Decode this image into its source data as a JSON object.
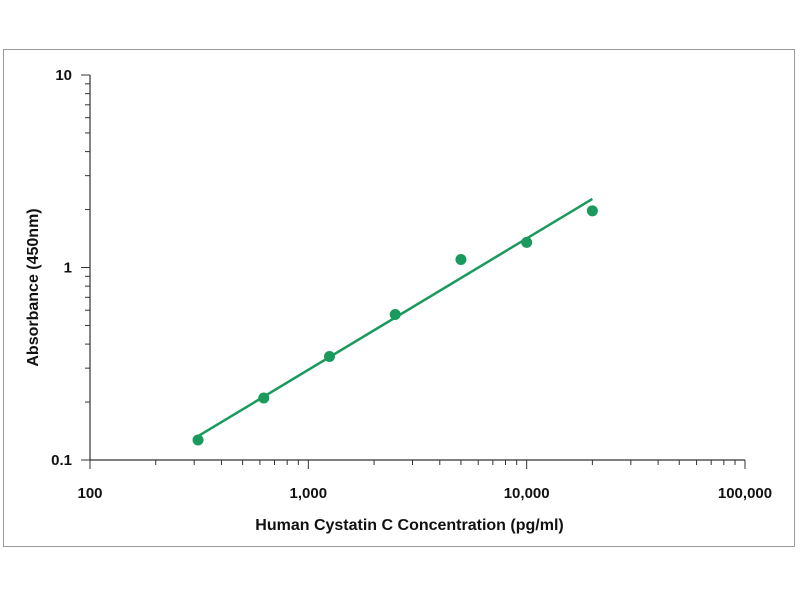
{
  "chart_data": {
    "type": "scatter",
    "xlabel": "Human Cystatin C Concentration (pg/ml)",
    "ylabel": "Absorbance (450nm)",
    "xscale": "log",
    "yscale": "log",
    "xlim": [
      100,
      100000
    ],
    "ylim": [
      0.1,
      10
    ],
    "x_ticks": [
      100,
      1000,
      10000,
      100000
    ],
    "x_tick_labels": [
      "100",
      "1,000",
      "10,000",
      "100,000"
    ],
    "y_ticks": [
      0.1,
      1,
      10
    ],
    "y_tick_labels": [
      "0.1",
      "1",
      "10"
    ],
    "grid": false,
    "legend": "none",
    "series": [
      {
        "color": "#1a9a5c",
        "marker": "circle",
        "x": [
          312.5,
          625,
          1250,
          2500,
          5000,
          10000,
          20000
        ],
        "y": [
          0.127,
          0.21,
          0.345,
          0.57,
          1.1,
          1.35,
          1.97
        ]
      }
    ],
    "fit_line": {
      "color": "#1a9a5c",
      "x": [
        312.5,
        20000
      ],
      "y": [
        0.133,
        2.27
      ]
    }
  }
}
